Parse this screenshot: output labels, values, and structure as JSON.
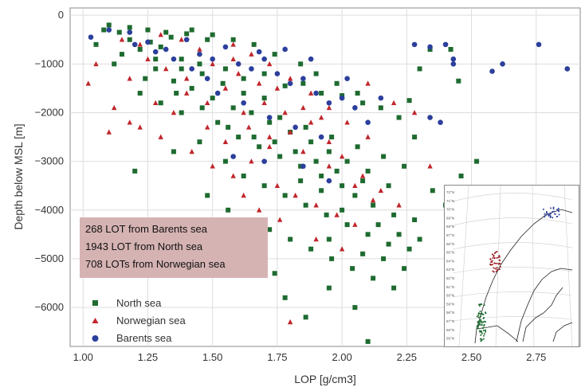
{
  "chart_data": {
    "type": "scatter",
    "title": "",
    "xlabel": "LOP [g/cm3]",
    "ylabel": "Depth below MSL [m]",
    "xlim": [
      0.95,
      2.92
    ],
    "ylim": [
      -6800,
      150
    ],
    "xticks": [
      "1.00",
      "1.25",
      "1.50",
      "1.75",
      "2.00",
      "2.25",
      "2.50",
      "2.75"
    ],
    "yticks": [
      "0",
      "−1000",
      "−2000",
      "−3000",
      "−4000",
      "−5000",
      "−6000"
    ],
    "grid": true,
    "legend_position": "bottom-left",
    "series": [
      {
        "name": "North sea",
        "marker": "square",
        "color": "#1e6b30",
        "points": [
          [
            1.1,
            -200
          ],
          [
            1.18,
            -250
          ],
          [
            1.25,
            -300
          ],
          [
            1.32,
            -350
          ],
          [
            1.4,
            -380
          ],
          [
            1.48,
            -500
          ],
          [
            1.22,
            -700
          ],
          [
            1.3,
            -650
          ],
          [
            1.38,
            -900
          ],
          [
            1.45,
            -1000
          ],
          [
            1.55,
            -1100
          ],
          [
            1.62,
            -1300
          ],
          [
            1.7,
            -1200
          ],
          [
            1.78,
            -1450
          ],
          [
            1.85,
            -1400
          ],
          [
            1.92,
            -1600
          ],
          [
            2.0,
            -1650
          ],
          [
            2.08,
            -1800
          ],
          [
            2.15,
            -1900
          ],
          [
            2.22,
            -2100
          ],
          [
            1.05,
            -600
          ],
          [
            1.15,
            -800
          ],
          [
            1.28,
            -1100
          ],
          [
            1.35,
            -1350
          ],
          [
            1.42,
            -1500
          ],
          [
            1.5,
            -1700
          ],
          [
            1.58,
            -1900
          ],
          [
            1.65,
            -2000
          ],
          [
            1.72,
            -2200
          ],
          [
            1.8,
            -2400
          ],
          [
            1.88,
            -2600
          ],
          [
            1.95,
            -2800
          ],
          [
            2.02,
            -3000
          ],
          [
            2.1,
            -3200
          ],
          [
            2.18,
            -3500
          ],
          [
            1.6,
            -2500
          ],
          [
            1.68,
            -2700
          ],
          [
            1.76,
            -2900
          ],
          [
            1.84,
            -3100
          ],
          [
            1.92,
            -3300
          ],
          [
            2.0,
            -3500
          ],
          [
            2.05,
            -3700
          ],
          [
            2.12,
            -3900
          ],
          [
            2.2,
            -4100
          ],
          [
            2.28,
            -4200
          ],
          [
            1.55,
            -3000
          ],
          [
            1.62,
            -3300
          ],
          [
            1.7,
            -3500
          ],
          [
            1.78,
            -3700
          ],
          [
            1.86,
            -3900
          ],
          [
            1.94,
            -4100
          ],
          [
            2.02,
            -4300
          ],
          [
            2.1,
            -4500
          ],
          [
            2.18,
            -4700
          ],
          [
            2.26,
            -4800
          ],
          [
            1.45,
            -2600
          ],
          [
            1.52,
            -2200
          ],
          [
            1.38,
            -2000
          ],
          [
            1.3,
            -1800
          ],
          [
            1.22,
            -1600
          ],
          [
            1.2,
            -3200
          ],
          [
            1.35,
            -2800
          ],
          [
            1.48,
            -3700
          ],
          [
            1.56,
            -4000
          ],
          [
            1.64,
            -4200
          ],
          [
            1.72,
            -4400
          ],
          [
            1.8,
            -4600
          ],
          [
            1.88,
            -4800
          ],
          [
            1.96,
            -5000
          ],
          [
            2.04,
            -5200
          ],
          [
            2.12,
            -5400
          ],
          [
            2.2,
            -5600
          ],
          [
            2.24,
            -5200
          ],
          [
            2.3,
            -4600
          ],
          [
            2.35,
            -3600
          ],
          [
            2.4,
            -3900
          ],
          [
            2.46,
            -3300
          ],
          [
            2.28,
            -2500
          ],
          [
            2.52,
            -3000
          ],
          [
            2.34,
            -700
          ],
          [
            2.42,
            -700
          ],
          [
            2.3,
            -1100
          ],
          [
            2.45,
            -1350
          ],
          [
            2.26,
            -1750
          ],
          [
            1.78,
            -5800
          ],
          [
            1.86,
            -6200
          ],
          [
            2.1,
            -6700
          ],
          [
            2.05,
            -6000
          ],
          [
            1.95,
            -5600
          ],
          [
            2.55,
            -5000
          ],
          [
            1.66,
            -5000
          ],
          [
            1.74,
            -5300
          ],
          [
            1.6,
            -4700
          ],
          [
            1.84,
            -1000
          ],
          [
            1.9,
            -1200
          ],
          [
            1.98,
            -1400
          ],
          [
            2.06,
            -1600
          ],
          [
            1.74,
            -800
          ],
          [
            1.66,
            -600
          ],
          [
            1.58,
            -500
          ],
          [
            1.5,
            -400
          ],
          [
            1.42,
            -300
          ],
          [
            1.34,
            -450
          ],
          [
            1.26,
            -550
          ],
          [
            1.14,
            -350
          ],
          [
            1.12,
            -1000
          ],
          [
            1.24,
            -1300
          ],
          [
            1.36,
            -1600
          ],
          [
            1.46,
            -1900
          ],
          [
            1.56,
            -2300
          ],
          [
            1.66,
            -2500
          ],
          [
            1.76,
            -2100
          ],
          [
            1.86,
            -2300
          ],
          [
            1.96,
            -2500
          ],
          [
            2.06,
            -2700
          ],
          [
            2.16,
            -2900
          ],
          [
            2.24,
            -3100
          ],
          [
            2.14,
            -4300
          ],
          [
            2.22,
            -4500
          ],
          [
            2.08,
            -3400
          ],
          [
            1.98,
            -3200
          ],
          [
            1.9,
            -3000
          ],
          [
            1.82,
            -2800
          ],
          [
            1.74,
            -2600
          ],
          [
            1.7,
            -1700
          ],
          [
            1.62,
            -1600
          ],
          [
            1.54,
            -1400
          ],
          [
            1.46,
            -1200
          ],
          [
            1.38,
            -1100
          ],
          [
            1.28,
            -900
          ],
          [
            1.18,
            -500
          ],
          [
            1.08,
            -300
          ],
          [
            1.95,
            -4600
          ],
          [
            2.0,
            -4000
          ],
          [
            2.16,
            -5000
          ],
          [
            2.08,
            -4900
          ],
          [
            1.92,
            -3600
          ],
          [
            1.84,
            -3400
          ]
        ]
      },
      {
        "name": "Norwegian sea",
        "marker": "triangle",
        "color": "#c0262c",
        "points": [
          [
            1.02,
            -1400
          ],
          [
            1.05,
            -1000
          ],
          [
            1.12,
            -1900
          ],
          [
            1.18,
            -2200
          ],
          [
            1.1,
            -2400
          ],
          [
            1.22,
            -2300
          ],
          [
            1.3,
            -2500
          ],
          [
            1.28,
            -1800
          ],
          [
            1.35,
            -2000
          ],
          [
            1.4,
            -1600
          ],
          [
            1.48,
            -1800
          ],
          [
            1.55,
            -1500
          ],
          [
            1.6,
            -1200
          ],
          [
            1.68,
            -1400
          ],
          [
            1.72,
            -1000
          ],
          [
            1.8,
            -1300
          ],
          [
            1.88,
            -1600
          ],
          [
            1.95,
            -1900
          ],
          [
            2.02,
            -2200
          ],
          [
            2.1,
            -2500
          ],
          [
            1.5,
            -1000
          ],
          [
            1.58,
            -900
          ],
          [
            1.65,
            -800
          ],
          [
            1.45,
            -700
          ],
          [
            1.38,
            -500
          ],
          [
            1.3,
            -400
          ],
          [
            1.22,
            -600
          ],
          [
            1.15,
            -500
          ],
          [
            1.42,
            -2800
          ],
          [
            1.5,
            -3100
          ],
          [
            1.58,
            -3300
          ],
          [
            1.65,
            -3000
          ],
          [
            1.72,
            -2700
          ],
          [
            1.8,
            -2400
          ],
          [
            1.88,
            -2200
          ],
          [
            1.95,
            -2600
          ],
          [
            2.0,
            -2900
          ],
          [
            2.08,
            -3300
          ],
          [
            2.15,
            -3600
          ],
          [
            2.22,
            -3900
          ],
          [
            1.75,
            -3500
          ],
          [
            1.82,
            -3700
          ],
          [
            1.9,
            -3900
          ],
          [
            1.98,
            -4100
          ],
          [
            2.05,
            -4300
          ],
          [
            1.68,
            -4000
          ],
          [
            1.76,
            -4200
          ],
          [
            1.62,
            -3700
          ],
          [
            1.55,
            -2600
          ],
          [
            1.48,
            -2300
          ],
          [
            1.85,
            -1900
          ],
          [
            1.92,
            -2100
          ],
          [
            1.78,
            -2000
          ],
          [
            1.7,
            -1800
          ],
          [
            1.62,
            -2000
          ],
          [
            2.2,
            -1800
          ],
          [
            2.28,
            -2000
          ],
          [
            2.34,
            -3100
          ],
          [
            2.1,
            -1400
          ],
          [
            1.64,
            -2300
          ],
          [
            1.72,
            -2500
          ],
          [
            1.8,
            -6300
          ],
          [
            1.9,
            -4600
          ],
          [
            2.0,
            -4800
          ],
          [
            1.4,
            -1300
          ],
          [
            1.32,
            -1100
          ],
          [
            1.25,
            -900
          ],
          [
            1.18,
            -1300
          ],
          [
            1.58,
            -600
          ],
          [
            1.75,
            -1500
          ],
          [
            1.85,
            -2800
          ],
          [
            1.95,
            -3100
          ],
          [
            2.05,
            -3500
          ],
          [
            2.12,
            -3800
          ]
        ]
      },
      {
        "name": "Barents sea",
        "marker": "circle",
        "color": "#2c3f9c",
        "points": [
          [
            1.03,
            -450
          ],
          [
            1.1,
            -300
          ],
          [
            1.18,
            -350
          ],
          [
            1.25,
            -550
          ],
          [
            1.32,
            -700
          ],
          [
            1.4,
            -500
          ],
          [
            1.45,
            -800
          ],
          [
            1.5,
            -900
          ],
          [
            1.55,
            -650
          ],
          [
            1.6,
            -1000
          ],
          [
            1.65,
            -1100
          ],
          [
            1.7,
            -900
          ],
          [
            1.75,
            -1200
          ],
          [
            1.8,
            -1400
          ],
          [
            1.85,
            -1300
          ],
          [
            1.9,
            -1600
          ],
          [
            1.95,
            -1800
          ],
          [
            2.0,
            -1700
          ],
          [
            2.05,
            -1900
          ],
          [
            2.1,
            -2200
          ],
          [
            1.48,
            -1300
          ],
          [
            1.52,
            -1600
          ],
          [
            1.62,
            -1800
          ],
          [
            1.72,
            -2100
          ],
          [
            1.82,
            -2300
          ],
          [
            1.92,
            -2500
          ],
          [
            1.58,
            -2900
          ],
          [
            1.7,
            -3000
          ],
          [
            1.85,
            -3100
          ],
          [
            1.95,
            -3400
          ],
          [
            1.42,
            -1100
          ],
          [
            1.35,
            -900
          ],
          [
            1.28,
            -750
          ],
          [
            1.2,
            -600
          ],
          [
            2.28,
            -600
          ],
          [
            2.34,
            -650
          ],
          [
            2.4,
            -600
          ],
          [
            2.43,
            -900
          ],
          [
            2.43,
            -1000
          ],
          [
            2.58,
            -1150
          ],
          [
            2.62,
            -1000
          ],
          [
            2.76,
            -600
          ],
          [
            2.87,
            -1100
          ],
          [
            2.38,
            -2200
          ],
          [
            2.34,
            -2100
          ],
          [
            2.15,
            -1700
          ],
          [
            1.88,
            -900
          ],
          [
            1.78,
            -700
          ],
          [
            1.68,
            -750
          ],
          [
            2.02,
            -1300
          ]
        ]
      }
    ]
  },
  "annotation": {
    "lines": [
      "268 LOT from Barents sea",
      "1943 LOT from North sea",
      "708 LOTs from Norwegian sea"
    ]
  },
  "inset_map": {
    "lat_labels": [
      "72°N",
      "71°N",
      "70°N",
      "69°N",
      "68°N",
      "67°N",
      "66°N",
      "65°N",
      "64°N",
      "63°N",
      "62°N",
      "61°N",
      "60°N",
      "59°N",
      "58°N",
      "57°N",
      "56°N",
      "55°N"
    ],
    "colors": {
      "north": "#1e6b30",
      "norwegian": "#9b1c22",
      "barents": "#2c3f9c"
    }
  }
}
